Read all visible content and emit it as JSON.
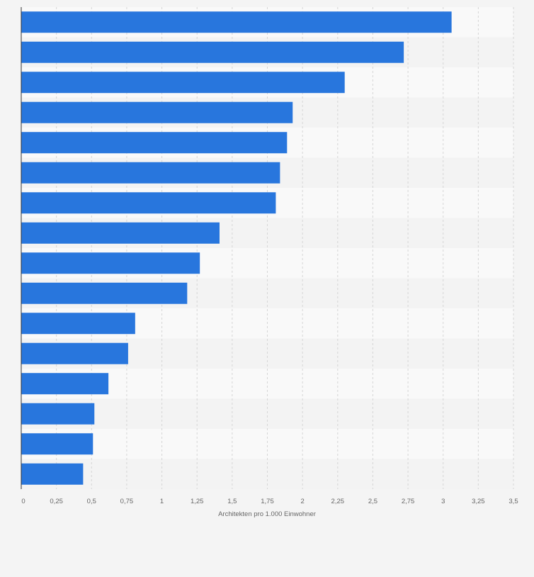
{
  "chart_data": {
    "type": "bar",
    "orientation": "horizontal",
    "categories": [
      "",
      "",
      "",
      "",
      "",
      "",
      "",
      "",
      "",
      "",
      "",
      "",
      "",
      "",
      "",
      ""
    ],
    "values": [
      3.06,
      2.72,
      2.3,
      1.93,
      1.89,
      1.84,
      1.81,
      1.41,
      1.27,
      1.18,
      0.81,
      0.76,
      0.62,
      0.52,
      0.51,
      0.44
    ],
    "xlabel": "Architekten pro 1.000 Einwohner",
    "xlim": [
      0,
      3.5
    ],
    "xticks": [
      0,
      0.25,
      0.5,
      0.75,
      1,
      1.25,
      1.5,
      1.75,
      2,
      2.25,
      2.5,
      2.75,
      3,
      3.25,
      3.5
    ],
    "xtick_labels": [
      "0",
      "0,25",
      "0,5",
      "0,75",
      "1",
      "1,25",
      "1,5",
      "1,75",
      "2",
      "2,25",
      "2,5",
      "2,75",
      "3",
      "3,25",
      "3,5"
    ],
    "grid": "vertical dashed",
    "colors": {
      "bar": "#2876dd",
      "band_light": "#f9f9f9",
      "band_dark": "#f3f3f3",
      "grid": "#d6d6d6",
      "axis": "#333333",
      "text": "#666666"
    }
  }
}
